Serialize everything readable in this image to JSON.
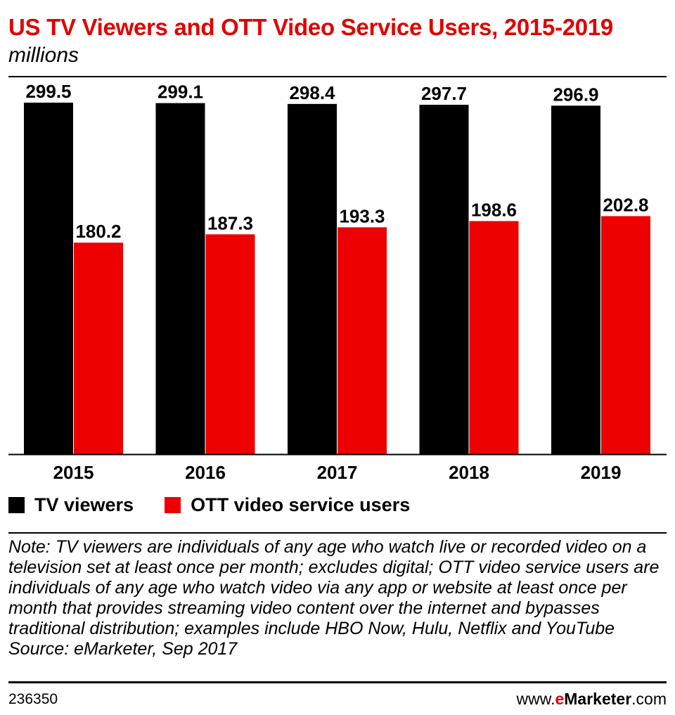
{
  "chart_data": {
    "type": "bar",
    "title": "US TV Viewers and OTT Video Service Users, 2015-2019",
    "subtitle": "millions",
    "categories": [
      "2015",
      "2016",
      "2017",
      "2018",
      "2019"
    ],
    "series": [
      {
        "name": "TV viewers",
        "color": "#000000",
        "values": [
          299.5,
          299.1,
          298.4,
          297.7,
          296.9
        ]
      },
      {
        "name": "OTT video service users",
        "color": "#ee0000",
        "values": [
          180.2,
          187.3,
          193.3,
          198.6,
          202.8
        ]
      }
    ],
    "data_labels": {
      "TV viewers": [
        "299.5",
        "299.1",
        "298.4",
        "297.7",
        "296.9"
      ],
      "OTT video service users": [
        "180.2",
        "187.3",
        "193.3",
        "198.6",
        "202.8"
      ]
    },
    "ylim": [
      0,
      299.5
    ],
    "xlabel": "",
    "ylabel": "",
    "grid": false,
    "legend": "bottom-left"
  },
  "note": {
    "text": "Note: TV viewers are individuals of any age who watch live or recorded video on a television set at least once per month; excludes digital; OTT video service users are individuals of any age who watch video via any app or website at least once per month that provides streaming video content over the internet and bypasses traditional distribution; examples include HBO Now, Hulu, Netflix and YouTube",
    "source": "Source: eMarketer, Sep 2017"
  },
  "footer": {
    "chart_id": "236350",
    "brand_prefix": "www.",
    "brand_e": "e",
    "brand_name": "Marketer",
    "brand_suffix": ".com"
  }
}
